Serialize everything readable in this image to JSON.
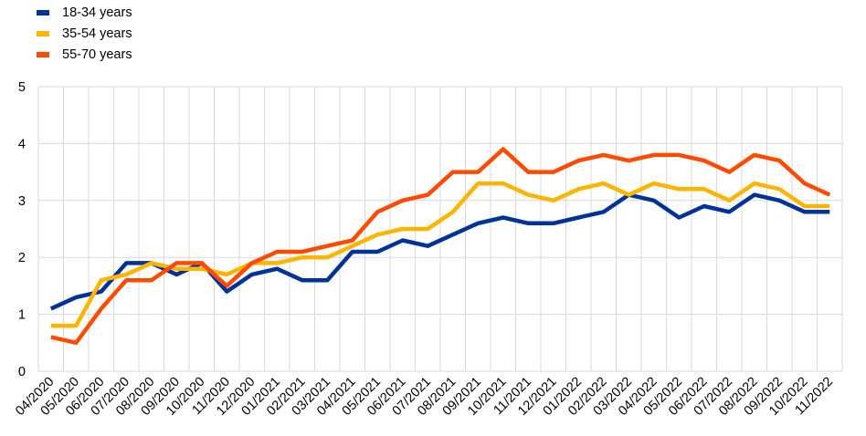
{
  "chart_data": {
    "type": "line",
    "title": "",
    "xlabel": "",
    "ylabel": "",
    "ylim": [
      0,
      5
    ],
    "yticks": [
      "0",
      "1",
      "2",
      "3",
      "4",
      "5"
    ],
    "grid": true,
    "legend_position": "top-left",
    "categories": [
      "04/2020",
      "05/2020",
      "06/2020",
      "07/2020",
      "08/2020",
      "09/2020",
      "10/2020",
      "11/2020",
      "12/2020",
      "01/2021",
      "02/2021",
      "03/2021",
      "04/2021",
      "05/2021",
      "06/2021",
      "07/2021",
      "08/2021",
      "09/2021",
      "10/2021",
      "11/2021",
      "12/2021",
      "01/2022",
      "02/2022",
      "03/2022",
      "04/2022",
      "05/2022",
      "06/2022",
      "07/2022",
      "08/2022",
      "09/2022",
      "10/2022",
      "11/2022"
    ],
    "series": [
      {
        "name": "18-34 years",
        "color": "#003299",
        "values": [
          1.1,
          1.3,
          1.4,
          1.9,
          1.9,
          1.7,
          1.9,
          1.4,
          1.7,
          1.8,
          1.6,
          1.6,
          2.1,
          2.1,
          2.3,
          2.2,
          2.4,
          2.6,
          2.7,
          2.6,
          2.6,
          2.7,
          2.8,
          3.1,
          3.0,
          2.7,
          2.9,
          2.8,
          3.1,
          3.0,
          2.8,
          2.8
        ]
      },
      {
        "name": "35-54 years",
        "color": "#FFB400",
        "values": [
          0.8,
          0.8,
          1.6,
          1.7,
          1.9,
          1.8,
          1.8,
          1.7,
          1.9,
          1.9,
          2.0,
          2.0,
          2.2,
          2.4,
          2.5,
          2.5,
          2.8,
          3.3,
          3.3,
          3.1,
          3.0,
          3.2,
          3.3,
          3.1,
          3.3,
          3.2,
          3.2,
          3.0,
          3.3,
          3.2,
          2.9,
          2.9
        ]
      },
      {
        "name": "55-70 years",
        "color": "#FF4B00",
        "values": [
          0.6,
          0.5,
          1.1,
          1.6,
          1.6,
          1.9,
          1.9,
          1.5,
          1.9,
          2.1,
          2.1,
          2.2,
          2.3,
          2.8,
          3.0,
          3.1,
          3.5,
          3.5,
          3.9,
          3.5,
          3.5,
          3.7,
          3.8,
          3.7,
          3.8,
          3.8,
          3.7,
          3.5,
          3.8,
          3.7,
          3.3,
          3.1
        ]
      }
    ]
  }
}
